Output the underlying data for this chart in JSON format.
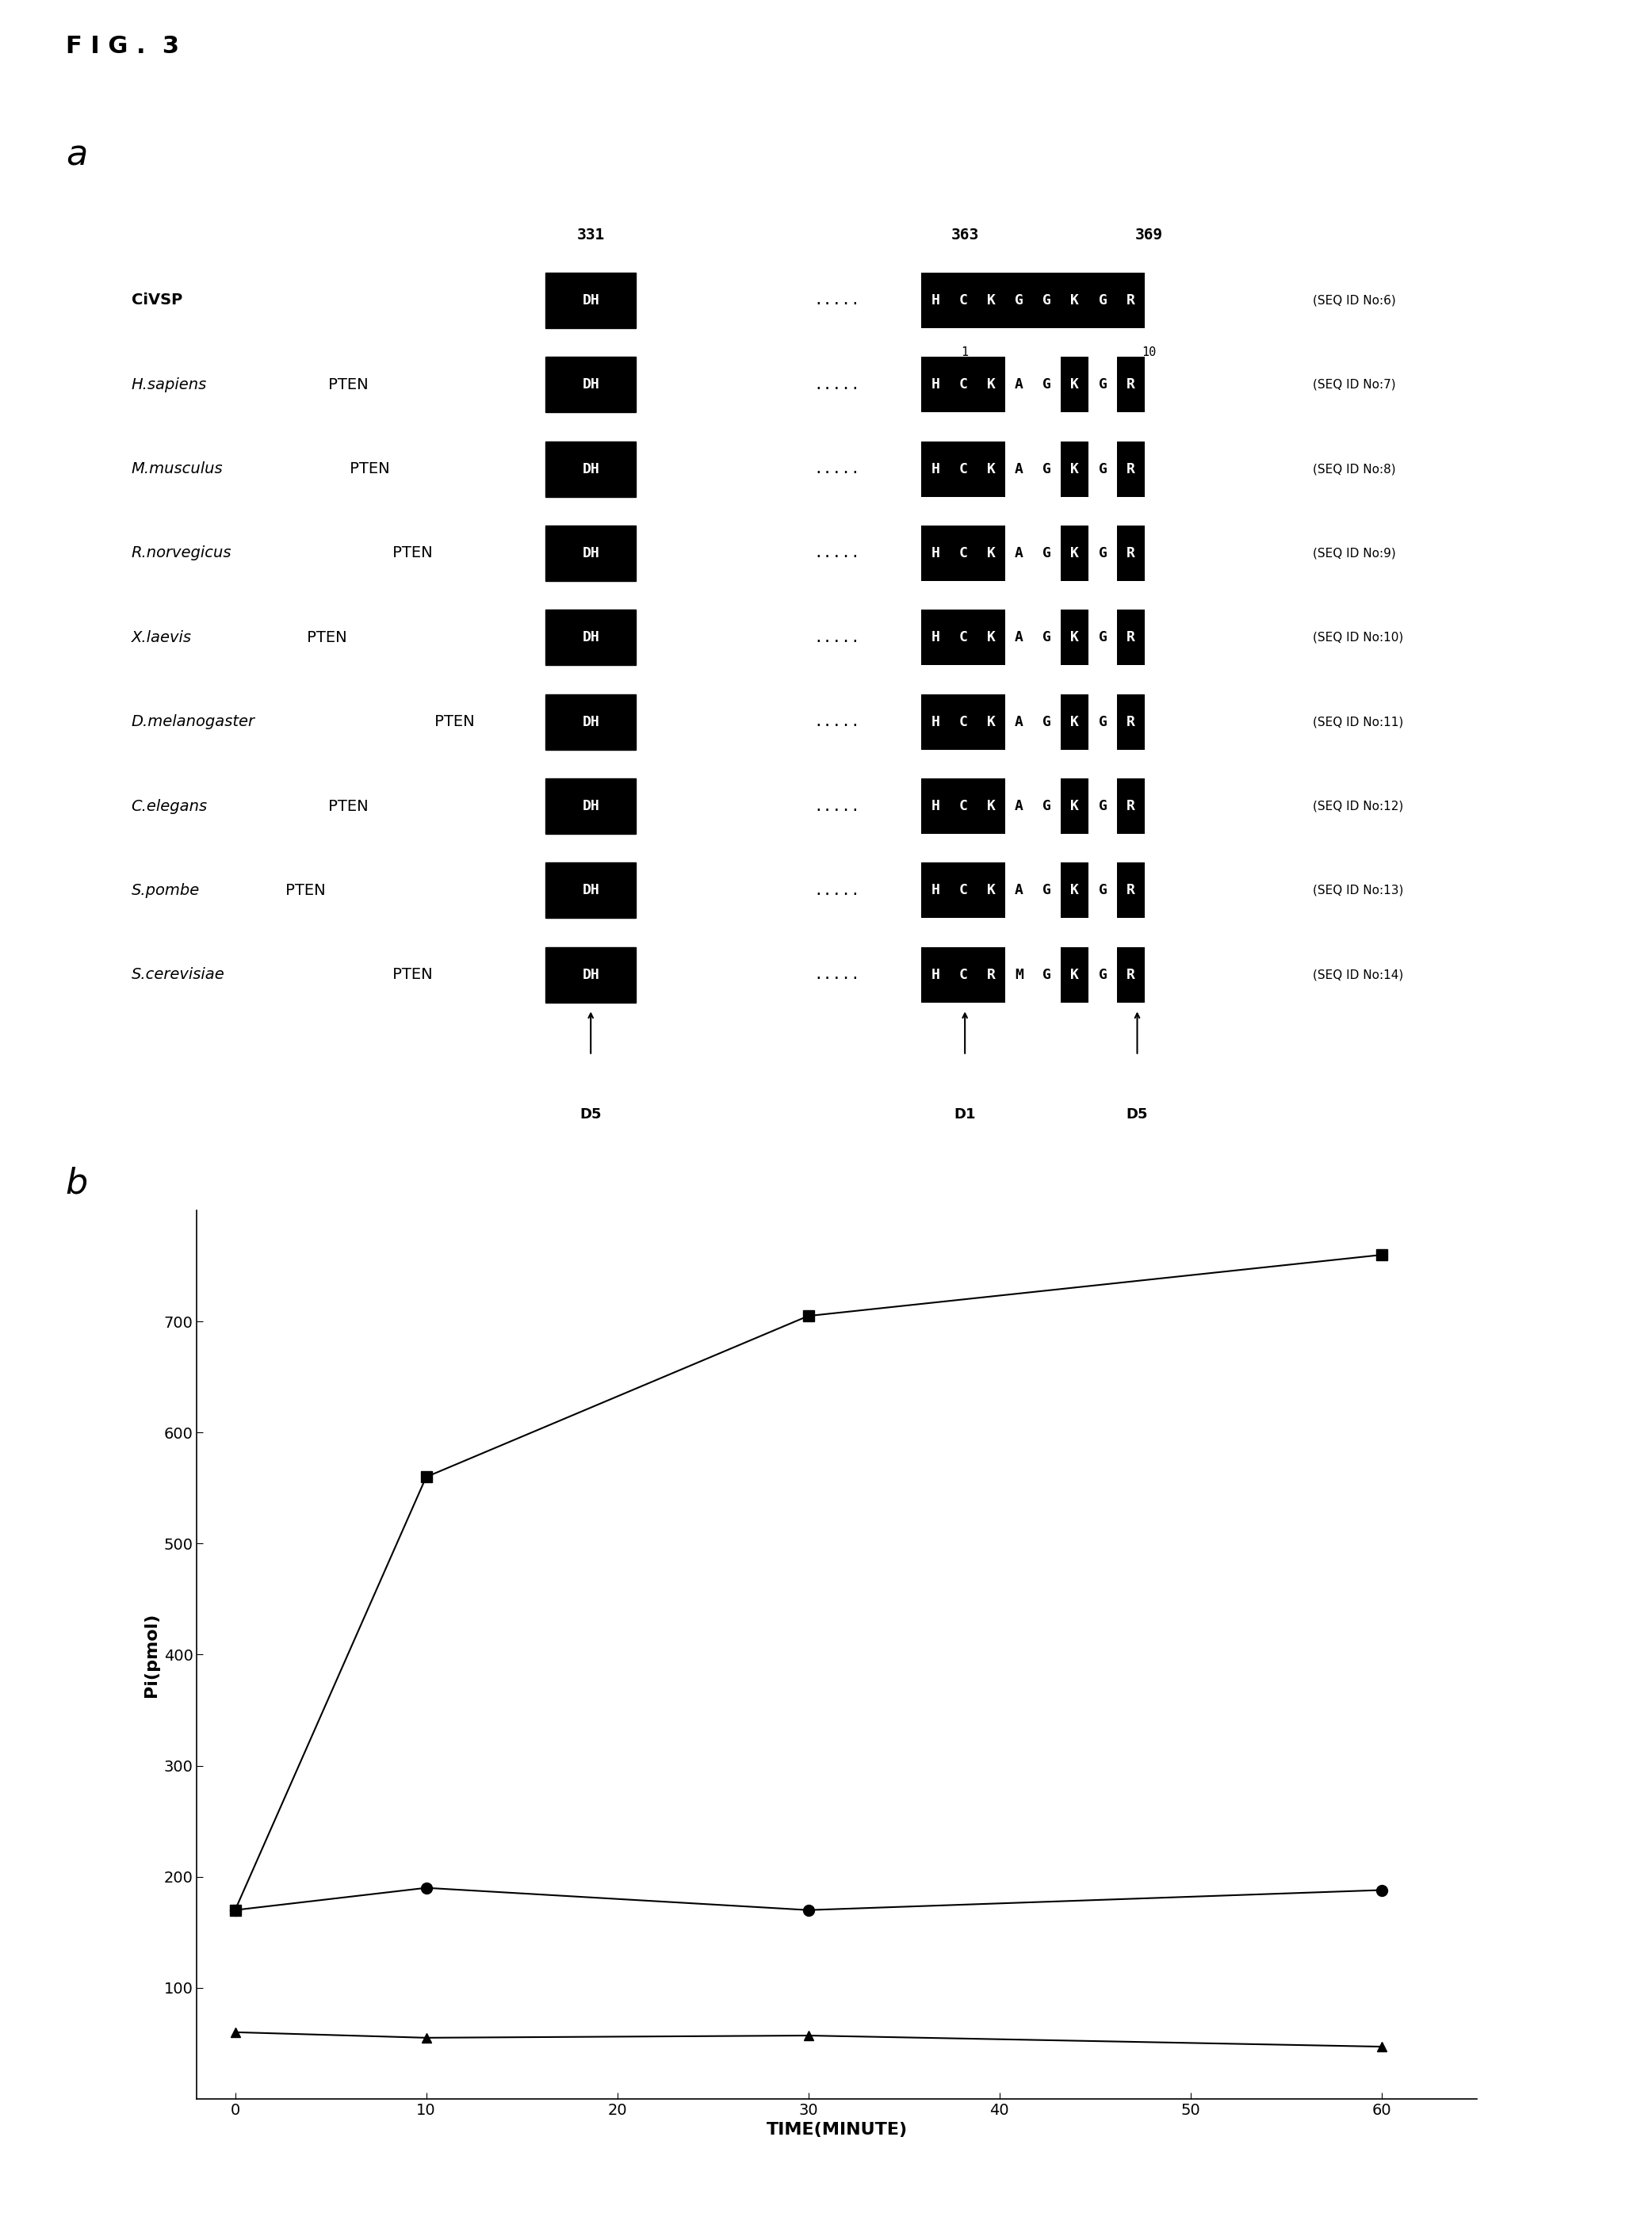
{
  "fig_label": "F I G .  3",
  "panel_a_label": "a",
  "panel_b_label": "b",
  "sequences": [
    {
      "name": "CiVSP",
      "italic_part": "",
      "bold_part": "CiVSP",
      "seq_left": "DH",
      "dots": ".....",
      "seq_right": "HCKGGKGR",
      "seq_id": "(SEQ ID No:6)",
      "is_civsp": true
    },
    {
      "name": "H.sapiens",
      "italic_part": "H.sapiens",
      "bold_part": " PTEN",
      "seq_left": "DH",
      "dots": ".....",
      "seq_right": "HCKAGKGR",
      "seq_id": "(SEQ ID No:7)",
      "is_civsp": false
    },
    {
      "name": "M.musculus",
      "italic_part": "M.musculus",
      "bold_part": " PTEN",
      "seq_left": "DH",
      "dots": ".....",
      "seq_right": "HCKAGKGR",
      "seq_id": "(SEQ ID No:8)",
      "is_civsp": false
    },
    {
      "name": "R.norvegicus",
      "italic_part": "R.norvegicus",
      "bold_part": " PTEN",
      "seq_left": "DH",
      "dots": ".....",
      "seq_right": "HCKAGKGR",
      "seq_id": "(SEQ ID No:9)",
      "is_civsp": false
    },
    {
      "name": "X.laevis",
      "italic_part": "X.laevis",
      "bold_part": " PTEN",
      "seq_left": "DH",
      "dots": ".....",
      "seq_right": "HCKAGKGR",
      "seq_id": "(SEQ ID No:10)",
      "is_civsp": false
    },
    {
      "name": "D.melanogaster",
      "italic_part": "D.melanogaster",
      "bold_part": " PTEN",
      "seq_left": "DH",
      "dots": ".....",
      "seq_right": "HCKAGKGR",
      "seq_id": "(SEQ ID No:11)",
      "is_civsp": false
    },
    {
      "name": "C.elegans",
      "italic_part": "C.elegans",
      "bold_part": " PTEN",
      "seq_left": "DH",
      "dots": ".....",
      "seq_right": "HCKAGKGR",
      "seq_id": "(SEQ ID No:12)",
      "is_civsp": false
    },
    {
      "name": "S.pombe",
      "italic_part": "S.pombe",
      "bold_part": " PTEN",
      "seq_left": "DH",
      "dots": ".....",
      "seq_right": "HCKAGKGR",
      "seq_id": "(SEQ ID No:13)",
      "is_civsp": false
    },
    {
      "name": "S.cerevisiae",
      "italic_part": "S.cerevisiae",
      "bold_part": " PTEN",
      "seq_left": "DH",
      "dots": ".....",
      "seq_right": "HCRMGKGR",
      "seq_id": "(SEQ ID No:14)",
      "is_civsp": false
    }
  ],
  "num_331": "331",
  "num_363": "363",
  "num_369": "369",
  "civsp_sub1": "1",
  "civsp_sub2": "10",
  "arrow_labels_bottom": [
    "D5",
    "D1",
    "D5"
  ],
  "graph_b": {
    "time_points": [
      0,
      10,
      30,
      60
    ],
    "square_series": [
      170,
      560,
      705,
      760
    ],
    "circle_series": [
      170,
      190,
      170,
      188
    ],
    "triangle_series": [
      60,
      55,
      57,
      47
    ],
    "xlabel": "TIME(MINUTE)",
    "ylabel": "Pi(pmol)",
    "yticks": [
      100,
      200,
      300,
      400,
      500,
      600,
      700
    ],
    "xticks": [
      0,
      10,
      20,
      30,
      40,
      50,
      60
    ],
    "ylim": [
      0,
      800
    ],
    "xlim": [
      -2,
      65
    ]
  }
}
